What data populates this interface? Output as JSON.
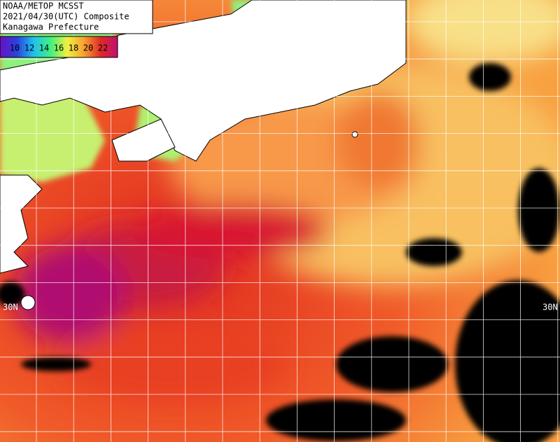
{
  "header": {
    "lines": [
      "NOAA/METOP MCSST",
      "2021/04/30(UTC) Composite",
      "Kanagawa Prefecture"
    ]
  },
  "legend": {
    "labels": [
      10,
      12,
      14,
      16,
      18,
      20,
      22
    ],
    "colors": [
      "#6a10c0",
      "#2a40e0",
      "#20c0f0",
      "#40f080",
      "#f0f040",
      "#f8a030",
      "#e02828",
      "#c01070"
    ]
  },
  "grid_labels": [
    "30N",
    "30N"
  ]
}
